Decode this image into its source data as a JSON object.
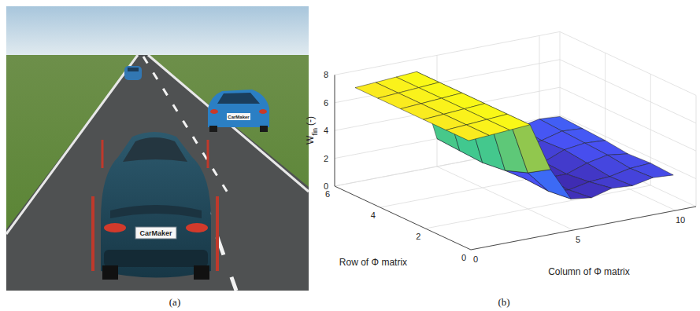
{
  "panel_labels": [
    "(a)",
    "(b)"
  ],
  "scene": {
    "plates": [
      "CarMaker",
      "CarMaker"
    ]
  },
  "chart_data": {
    "type": "surface",
    "zlabel": "W",
    "zlabel_sub": "fin",
    "zlabel_unit": "(-)",
    "xlabel": "Column of Φ matrix",
    "ylabel": "Row of Φ matrix",
    "x": [
      1,
      2,
      3,
      4,
      5,
      6,
      7,
      8,
      9,
      10,
      11
    ],
    "y": [
      1,
      2,
      3,
      4,
      5,
      6
    ],
    "z": [
      [
        6.8,
        6.9,
        7.0,
        7.1,
        3.6,
        1.2,
        1.0,
        1.4,
        1.3,
        1.6,
        1.5
      ],
      [
        6.8,
        6.9,
        7.0,
        7.1,
        2.6,
        1.0,
        0.8,
        1.1,
        1.2,
        1.5,
        1.6
      ],
      [
        6.8,
        6.9,
        7.0,
        7.1,
        2.0,
        1.1,
        0.9,
        0.9,
        1.4,
        1.7,
        1.5
      ],
      [
        6.8,
        6.9,
        7.0,
        7.1,
        1.8,
        1.5,
        1.2,
        1.0,
        1.6,
        1.8,
        1.7
      ],
      [
        6.8,
        6.9,
        7.0,
        7.1,
        1.9,
        1.6,
        1.4,
        1.3,
        1.5,
        1.9,
        1.8
      ],
      [
        6.8,
        6.9,
        7.0,
        7.1,
        2.0,
        1.8,
        1.7,
        1.6,
        1.7,
        2.0,
        1.9
      ]
    ],
    "xlim": [
      0,
      11
    ],
    "xticks": [
      0,
      5,
      10
    ],
    "ylim": [
      0,
      6
    ],
    "yticks": [
      0,
      2,
      4,
      6
    ],
    "zlim": [
      0,
      8
    ],
    "zticks": [
      0,
      2,
      4,
      6,
      8
    ],
    "grid": true
  }
}
